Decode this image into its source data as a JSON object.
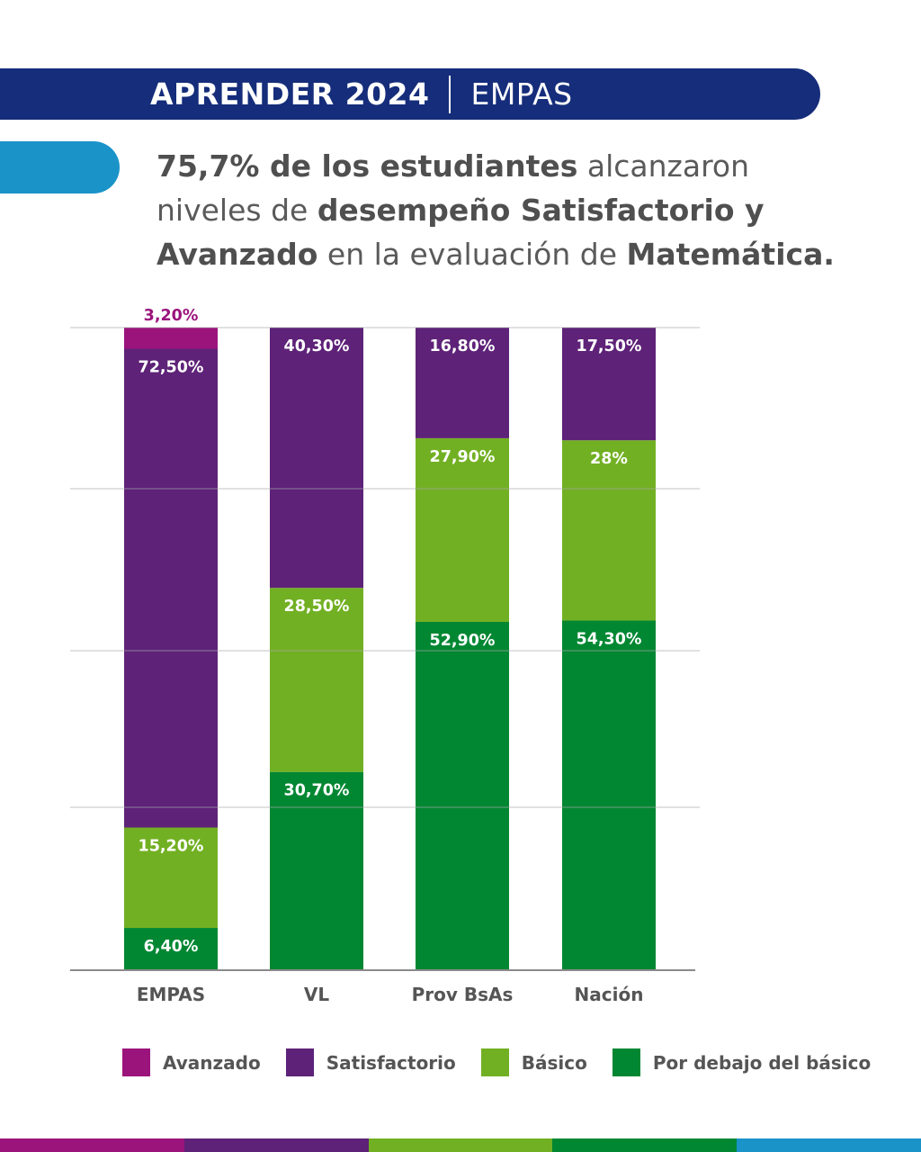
{
  "header": {
    "title_bold": "APRENDER 2024",
    "title_light": "EMPAS"
  },
  "headline": {
    "part1_bold": "75,7% de los estudiantes",
    "part2": " alcanzaron niveles de ",
    "part3_bold": "desempeño Satisfactorio y Avanzado",
    "part4": " en la evaluación de ",
    "part5_bold": "Matemática."
  },
  "colors": {
    "header": "#152d7a",
    "accent": "#1a93c8",
    "avanzado": "#9b147c",
    "satisfactorio": "#5e2278",
    "basico": "#72b023",
    "por_debajo": "#018732",
    "gridline": "#a8a8a8",
    "text": "#555555"
  },
  "chart_data": {
    "type": "bar",
    "stacked": true,
    "title": "",
    "xlabel": "",
    "ylabel": "",
    "ylim": [
      0,
      100
    ],
    "grid": true,
    "legend_position": "bottom",
    "categories": [
      "EMPAS",
      "VL",
      "Prov BsAs",
      "Nación"
    ],
    "series": [
      {
        "name": "Por debajo del básico",
        "key": "por_debajo",
        "values": [
          6.4,
          30.7,
          52.9,
          54.3
        ],
        "labels": [
          "6,40%",
          "30,70%",
          "52,90%",
          "54,30%"
        ]
      },
      {
        "name": "Básico",
        "key": "basico",
        "values": [
          15.2,
          28.5,
          27.9,
          28.0
        ],
        "labels": [
          "15,20%",
          "28,50%",
          "27,90%",
          "28%"
        ]
      },
      {
        "name": "Satisfactorio",
        "key": "satisfactorio",
        "values": [
          72.5,
          40.3,
          16.8,
          17.5
        ],
        "labels": [
          "72,50%",
          "40,30%",
          "16,80%",
          "17,50%"
        ]
      },
      {
        "name": "Avanzado",
        "key": "avanzado",
        "values": [
          3.2,
          0,
          0,
          0
        ],
        "labels": [
          "3,20%",
          "",
          "",
          ""
        ]
      }
    ]
  },
  "legend": [
    {
      "label": "Avanzado",
      "key": "avanzado"
    },
    {
      "label": "Satisfactorio",
      "key": "satisfactorio"
    },
    {
      "label": "Básico",
      "key": "basico"
    },
    {
      "label": "Por debajo del básico",
      "key": "por_debajo"
    }
  ],
  "footer_strip": [
    "avanzado",
    "satisfactorio",
    "basico",
    "por_debajo",
    "accent"
  ]
}
